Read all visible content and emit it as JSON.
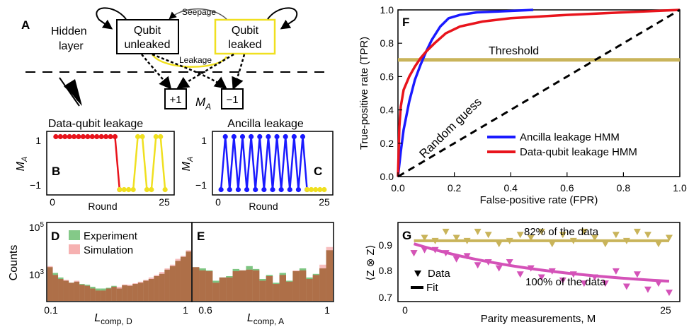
{
  "panels": {
    "A": {
      "letter": "A",
      "hidden_layer": [
        "Hidden",
        "layer"
      ],
      "state_unleaked": [
        "Qubit",
        "unleaked"
      ],
      "state_leaked": [
        "Qubit",
        "leaked"
      ],
      "seepage_label": "Seepage",
      "leakage_label": "Leakage",
      "outcome_plus": "+1",
      "outcome_minus": "−1",
      "measurement_label": "M",
      "measurement_sub": "A",
      "colors": {
        "unleaked": "#000000",
        "leaked": "#f0e020"
      },
      "icons": [
        "eye-icon"
      ]
    },
    "B": {
      "letter": "B",
      "title": "Data-qubit leakage",
      "ylabel": "M",
      "ylabel_sub": "A",
      "xlabel": "Round",
      "yticks": [
        "1",
        "−1"
      ],
      "xticks": [
        "0",
        "25"
      ]
    },
    "C": {
      "letter": "C",
      "title": "Ancilla leakage",
      "ylabel": "M",
      "ylabel_sub": "A",
      "xlabel": "Round",
      "yticks": [
        "1",
        "−1"
      ],
      "xticks": [
        "0",
        "25"
      ]
    },
    "D": {
      "letter": "D",
      "ylabel": "Counts",
      "xlabel": "L",
      "xlabel_sub": "comp, D",
      "xticks": [
        "0.1",
        "1"
      ],
      "yticks": [
        "10",
        "10"
      ],
      "ytick_exps": [
        "5",
        "3"
      ]
    },
    "E": {
      "letter": "E",
      "xlabel": "L",
      "xlabel_sub": "comp, A",
      "xticks": [
        "0.6",
        "1"
      ]
    },
    "F": {
      "letter": "F",
      "xlabel": "False-positive rate (FPR)",
      "ylabel": "True-positive rate (TPR)",
      "threshold_label": "Threshold",
      "random_label": "Random guess",
      "xticks": [
        "0.0",
        "0.2",
        "0.4",
        "0.6",
        "0.8",
        "1.0"
      ],
      "yticks": [
        "0.0",
        "0.2",
        "0.4",
        "0.6",
        "0.8",
        "1.0"
      ],
      "legend": [
        "Ancilla leakage HMM",
        "Data-qubit leakage HMM"
      ]
    },
    "G": {
      "letter": "G",
      "xlabel": "Parity measurements, M",
      "ylabel": "⟨Z ⊗ Z⟩",
      "label_top": "82% of the data",
      "label_bottom": "100% of the data",
      "legend": [
        "Data",
        "Fit"
      ],
      "xticks": [
        "0",
        "25"
      ],
      "yticks": [
        "0.9",
        "0.8",
        "0.7"
      ]
    }
  },
  "chart_data": [
    {
      "panel": "B",
      "type": "line",
      "title": "Data-qubit leakage",
      "xlabel": "Round",
      "ylabel": "M_A",
      "xlim": [
        -1,
        27
      ],
      "ylim": [
        -1.2,
        1.2
      ],
      "series": [
        {
          "color": "#e8141c",
          "x": [
            1,
            2,
            3,
            4,
            5,
            6,
            7,
            8,
            9,
            10,
            11,
            12,
            13,
            14,
            15
          ],
          "values": [
            1,
            1,
            1,
            1,
            1,
            1,
            1,
            1,
            1,
            1,
            1,
            1,
            1,
            1,
            -1
          ]
        },
        {
          "color": "#f0e020",
          "x": [
            15,
            16,
            17,
            18,
            19,
            20,
            21,
            22,
            23,
            24,
            25
          ],
          "values": [
            -1,
            -1,
            -1,
            -1,
            1,
            1,
            -1,
            -1,
            1,
            1,
            -1
          ]
        }
      ]
    },
    {
      "panel": "C",
      "type": "line",
      "title": "Ancilla leakage",
      "xlabel": "Round",
      "ylabel": "M_A",
      "xlim": [
        -1,
        27
      ],
      "ylim": [
        -1.2,
        1.2
      ],
      "series": [
        {
          "color": "#1a1aff",
          "x": [
            1,
            2,
            3,
            4,
            5,
            6,
            7,
            8,
            9,
            10,
            11,
            12,
            13,
            14,
            15,
            16,
            17,
            18,
            19,
            20,
            21
          ],
          "values": [
            -1,
            1,
            -1,
            1,
            -1,
            1,
            -1,
            1,
            -1,
            1,
            -1,
            1,
            -1,
            1,
            -1,
            1,
            -1,
            1,
            -1,
            1,
            -1
          ]
        },
        {
          "color": "#f0e020",
          "x": [
            21,
            22,
            23,
            24,
            25
          ],
          "values": [
            -1,
            -1,
            -1,
            -1,
            -1
          ]
        }
      ]
    },
    {
      "panel": "D",
      "type": "bar",
      "ylabel": "Counts",
      "xlabel": "L_comp,D",
      "ylog": true,
      "ylim": [
        100,
        100000
      ],
      "series": [
        {
          "name": "Experiment",
          "color": "#6fbf73",
          "values": [
            2000,
            1200,
            800,
            600,
            500,
            550,
            450,
            420,
            350,
            300,
            300,
            320,
            380,
            300,
            400,
            380,
            450,
            500,
            600,
            700,
            900,
            1100,
            1600,
            2200,
            3500,
            5000,
            8000
          ]
        },
        {
          "name": "Simulation",
          "color": "#f4a3a3",
          "values": [
            2200,
            1000,
            700,
            650,
            500,
            600,
            420,
            380,
            300,
            250,
            250,
            300,
            350,
            350,
            430,
            420,
            480,
            550,
            650,
            800,
            1000,
            1300,
            1800,
            2500,
            4200,
            5500,
            9000
          ]
        }
      ]
    },
    {
      "panel": "E",
      "type": "bar",
      "xlabel": "L_comp,A",
      "ylog": true,
      "ylim": [
        100,
        100000
      ],
      "series": [
        {
          "name": "Experiment",
          "color": "#6fbf73",
          "values": [
            2000,
            1800,
            1500,
            600,
            800,
            900,
            1700,
            1500,
            2200,
            1700,
            700,
            1000,
            500,
            1200,
            600,
            1400,
            1800,
            800,
            1100,
            1800,
            9000
          ]
        },
        {
          "name": "Simulation",
          "color": "#f4a3a3",
          "values": [
            2000,
            1500,
            1400,
            500,
            800,
            800,
            1400,
            1500,
            1600,
            1500,
            600,
            900,
            450,
            1000,
            550,
            1500,
            1500,
            700,
            1000,
            2500,
            12000
          ]
        }
      ]
    },
    {
      "panel": "F",
      "type": "line",
      "xlabel": "False-positive rate (FPR)",
      "ylabel": "True-positive rate (TPR)",
      "xlim": [
        0,
        1
      ],
      "ylim": [
        0,
        1
      ],
      "threshold": 0.7,
      "series": [
        {
          "name": "Ancilla leakage HMM",
          "color": "#1a1aff",
          "x": [
            0,
            0.01,
            0.02,
            0.04,
            0.06,
            0.08,
            0.1,
            0.12,
            0.15,
            0.18,
            0.22,
            0.28,
            0.35,
            0.42,
            0.48
          ],
          "values": [
            0,
            0.15,
            0.28,
            0.45,
            0.58,
            0.67,
            0.75,
            0.82,
            0.9,
            0.95,
            0.97,
            0.985,
            0.99,
            0.995,
            1.0
          ]
        },
        {
          "name": "Data-qubit leakage HMM",
          "color": "#e8141c",
          "x": [
            0,
            0.005,
            0.01,
            0.02,
            0.04,
            0.06,
            0.08,
            0.1,
            0.13,
            0.17,
            0.22,
            0.3,
            0.4,
            0.6,
            0.8,
            1.0
          ],
          "values": [
            0,
            0.3,
            0.42,
            0.52,
            0.6,
            0.66,
            0.71,
            0.75,
            0.8,
            0.86,
            0.9,
            0.93,
            0.95,
            0.97,
            0.985,
            1.0
          ]
        },
        {
          "name": "Random guess",
          "color": "#000000",
          "x": [
            0,
            1
          ],
          "values": [
            0,
            1
          ]
        }
      ]
    },
    {
      "panel": "G",
      "type": "scatter",
      "xlabel": "Parity measurements, M",
      "ylabel": "⟨Z ⊗ Z⟩",
      "xlim": [
        -0.5,
        26
      ],
      "ylim": [
        0.7,
        0.96
      ],
      "series": [
        {
          "name": "82% of the data",
          "color": "#c9b45a",
          "x": [
            1,
            2,
            3,
            4,
            5,
            6,
            7,
            8,
            9,
            10,
            11,
            12,
            13,
            14,
            15,
            16,
            17,
            18,
            19,
            20,
            21,
            22,
            23,
            24,
            25
          ],
          "values": [
            0.86,
            0.91,
            0.9,
            0.93,
            0.91,
            0.9,
            0.93,
            0.92,
            0.89,
            0.9,
            0.92,
            0.91,
            0.93,
            0.89,
            0.92,
            0.9,
            0.93,
            0.91,
            0.89,
            0.92,
            0.9,
            0.93,
            0.92,
            0.89,
            0.91
          ],
          "fit": 0.9
        },
        {
          "name": "100% of the data",
          "color": "#d452b8",
          "x": [
            1,
            2,
            3,
            4,
            5,
            6,
            7,
            8,
            9,
            10,
            11,
            12,
            13,
            14,
            15,
            16,
            17,
            18,
            19,
            20,
            21,
            22,
            23,
            24,
            25
          ],
          "values": [
            0.86,
            0.87,
            0.87,
            0.86,
            0.84,
            0.85,
            0.82,
            0.83,
            0.81,
            0.83,
            0.79,
            0.81,
            0.78,
            0.8,
            0.77,
            0.79,
            0.76,
            0.78,
            0.76,
            0.8,
            0.75,
            0.79,
            0.74,
            0.76,
            0.73
          ],
          "fit_a": 0.89,
          "fit_b": 0.15,
          "fit_tau": 14
        }
      ]
    }
  ]
}
